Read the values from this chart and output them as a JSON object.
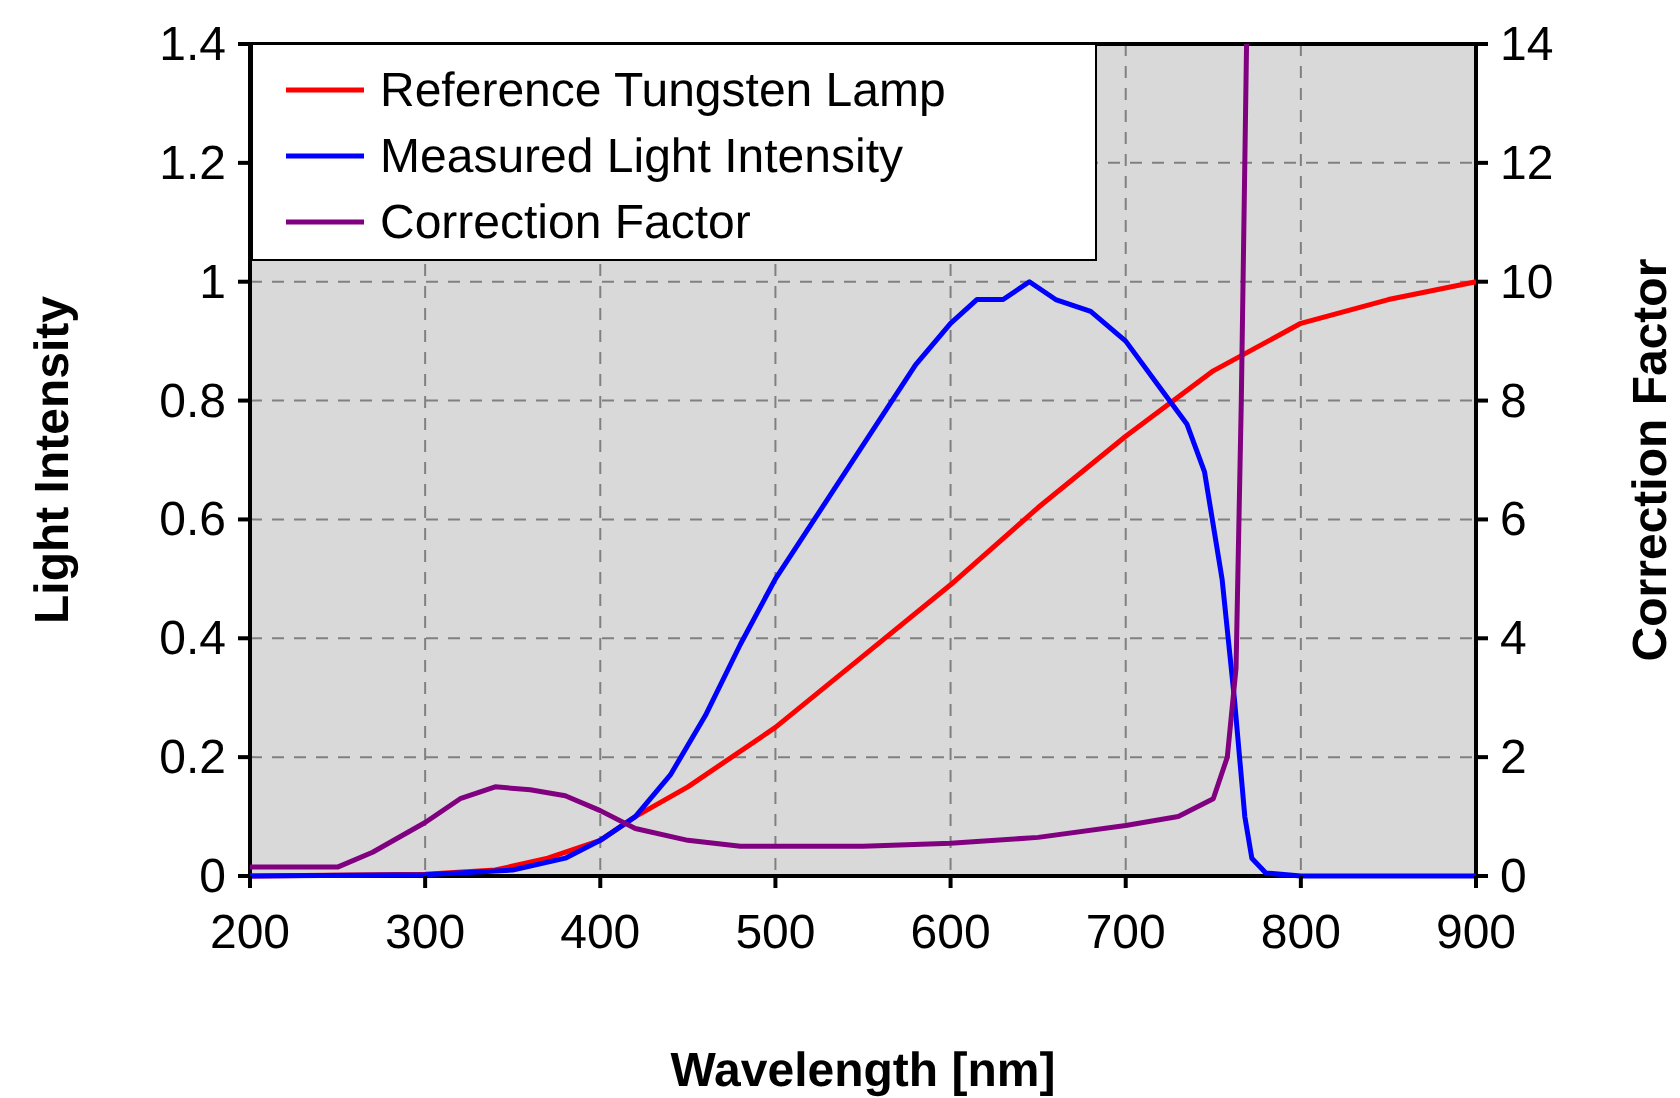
{
  "chart_data": {
    "type": "line",
    "xlabel": "Wavelength [nm]",
    "ylabel": "Light Intensity",
    "y2label": "Correction Factor",
    "xlim": [
      200,
      900
    ],
    "xticks": [
      200,
      300,
      400,
      500,
      600,
      700,
      800,
      900
    ],
    "ylim": [
      0,
      1.4
    ],
    "yticks": [
      0,
      0.2,
      0.4,
      0.6,
      0.8,
      1,
      1.2,
      1.4
    ],
    "y2lim": [
      0,
      14
    ],
    "y2ticks": [
      0,
      2,
      4,
      6,
      8,
      10,
      12,
      14
    ],
    "grid": true,
    "legend": "top left",
    "marker": "none",
    "line_style": "solid",
    "series": [
      {
        "name": "Reference Tungsten Lamp",
        "color": "#ff0000",
        "x": [
          200,
          300,
          340,
          370,
          400,
          420,
          450,
          500,
          550,
          600,
          650,
          700,
          750,
          800,
          850,
          900
        ],
        "values": [
          0,
          0.003,
          0.01,
          0.03,
          0.06,
          0.1,
          0.15,
          0.25,
          0.37,
          0.49,
          0.62,
          0.74,
          0.85,
          0.93,
          0.97,
          1.0
        ]
      },
      {
        "name": "Measured Light Intensity",
        "color": "#0000ff",
        "x": [
          200,
          300,
          350,
          380,
          400,
          420,
          440,
          460,
          480,
          500,
          520,
          540,
          560,
          580,
          600,
          615,
          630,
          645,
          660,
          680,
          700,
          720,
          735,
          745,
          755,
          762,
          768,
          772,
          780,
          800,
          900
        ],
        "values": [
          0,
          0.002,
          0.01,
          0.03,
          0.06,
          0.1,
          0.17,
          0.27,
          0.39,
          0.5,
          0.59,
          0.68,
          0.77,
          0.86,
          0.93,
          0.97,
          0.97,
          1.0,
          0.97,
          0.95,
          0.9,
          0.82,
          0.76,
          0.68,
          0.5,
          0.3,
          0.1,
          0.03,
          0.005,
          0,
          0
        ]
      },
      {
        "name": "Correction Factor",
        "color": "#800080",
        "axis": "y2",
        "x": [
          200,
          250,
          270,
          300,
          320,
          340,
          360,
          380,
          400,
          420,
          450,
          480,
          550,
          600,
          650,
          700,
          730,
          750,
          758,
          763,
          766,
          769
        ],
        "values": [
          0.15,
          0.15,
          0.4,
          0.9,
          1.3,
          1.5,
          1.45,
          1.35,
          1.1,
          0.8,
          0.6,
          0.5,
          0.5,
          0.55,
          0.65,
          0.85,
          1.0,
          1.3,
          2,
          3.5,
          8,
          14
        ]
      }
    ]
  }
}
